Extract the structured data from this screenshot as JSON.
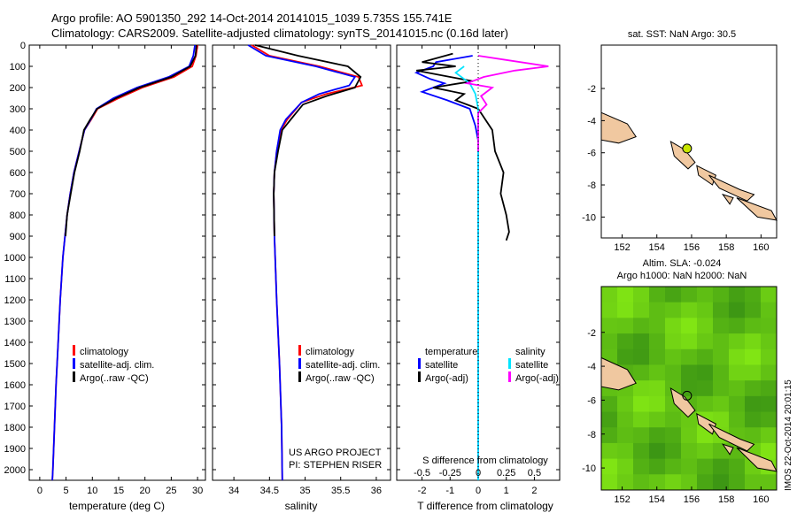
{
  "header": {
    "line1": "Argo profile: AO 5901350_292 14-Oct-2014 20141015_1039 5.735S 155.741E",
    "line2": "Climatology: CARS2009. Satellite-adjusted climatology: synTS_20141015.nc (0.16d later)"
  },
  "watermark": "IMOS 22-Oct-2014 20:01:15",
  "project": {
    "line1": "US ARGO PROJECT",
    "line2": "PI: STEPHEN RISER"
  },
  "colors": {
    "climatology": "#ff0000",
    "satellite": "#0000ff",
    "argo": "#000000",
    "sat_t": "#00e5ff",
    "argo_s": "#ff00ff",
    "land": "#f0c8a0",
    "sst_dot": "#c8e600",
    "sla_field": "#44cc22"
  },
  "depth_ticks": [
    "0",
    "100",
    "200",
    "300",
    "400",
    "500",
    "600",
    "700",
    "800",
    "900",
    "1000",
    "1100",
    "1200",
    "1300",
    "1400",
    "1500",
    "1600",
    "1700",
    "1800",
    "1900",
    "2000"
  ],
  "chart_data": [
    {
      "type": "line",
      "id": "temperature",
      "xlabel": "temperature (deg C)",
      "ylabel": "",
      "xlim": [
        -2,
        31.5
      ],
      "ylim": [
        2050,
        0
      ],
      "xticks": [
        "0",
        "5",
        "10",
        "15",
        "20",
        "25",
        "30"
      ],
      "legend": [
        "climatology",
        "satellite-adj. clim.",
        "Argo(..raw -QC)"
      ],
      "series": [
        {
          "name": "climatology",
          "points": [
            [
              30.0,
              0
            ],
            [
              29.7,
              50
            ],
            [
              29.0,
              100
            ],
            [
              25.5,
              150
            ],
            [
              19.5,
              200
            ],
            [
              15.0,
              250
            ],
            [
              11.0,
              300
            ],
            [
              9.8,
              350
            ],
            [
              8.5,
              400
            ],
            [
              7.5,
              500
            ],
            [
              6.5,
              600
            ],
            [
              5.8,
              700
            ],
            [
              5.2,
              800
            ],
            [
              4.8,
              900
            ],
            [
              4.4,
              1000
            ],
            [
              3.9,
              1200
            ],
            [
              3.5,
              1400
            ],
            [
              3.1,
              1600
            ],
            [
              2.8,
              1800
            ],
            [
              2.5,
              2000
            ],
            [
              2.4,
              2050
            ]
          ]
        },
        {
          "name": "satellite-adj. clim.",
          "points": [
            [
              29.5,
              0
            ],
            [
              29.2,
              50
            ],
            [
              28.4,
              100
            ],
            [
              24.5,
              150
            ],
            [
              18.5,
              200
            ],
            [
              14.0,
              250
            ],
            [
              10.8,
              300
            ],
            [
              9.7,
              350
            ],
            [
              8.5,
              400
            ],
            [
              7.5,
              500
            ],
            [
              6.5,
              600
            ],
            [
              5.8,
              700
            ],
            [
              5.2,
              800
            ],
            [
              4.8,
              900
            ],
            [
              4.4,
              1000
            ],
            [
              3.9,
              1200
            ],
            [
              3.5,
              1400
            ],
            [
              3.1,
              1600
            ],
            [
              2.8,
              1800
            ],
            [
              2.5,
              2000
            ],
            [
              2.4,
              2050
            ]
          ]
        },
        {
          "name": "Argo(..raw -QC)",
          "points": [
            [
              29.8,
              0
            ],
            [
              29.6,
              50
            ],
            [
              28.6,
              100
            ],
            [
              25.0,
              150
            ],
            [
              19.0,
              200
            ],
            [
              14.5,
              250
            ],
            [
              10.9,
              300
            ],
            [
              9.6,
              350
            ],
            [
              8.4,
              400
            ],
            [
              7.6,
              500
            ],
            [
              6.6,
              600
            ],
            [
              5.9,
              700
            ],
            [
              5.2,
              800
            ],
            [
              4.9,
              900
            ]
          ]
        }
      ]
    },
    {
      "type": "line",
      "id": "salinity",
      "xlabel": "salinity",
      "ylabel": "",
      "xlim": [
        33.7,
        36.2
      ],
      "ylim": [
        2050,
        0
      ],
      "xticks": [
        "34",
        "34.5",
        "35",
        "35.5",
        "36"
      ],
      "legend": [
        "climatology",
        "satellite-adj. clim.",
        "Argo(..raw -QC)"
      ],
      "series": [
        {
          "name": "climatology",
          "points": [
            [
              34.25,
              0
            ],
            [
              34.5,
              50
            ],
            [
              35.2,
              100
            ],
            [
              35.75,
              150
            ],
            [
              35.8,
              190
            ],
            [
              35.3,
              230
            ],
            [
              34.95,
              270
            ],
            [
              34.75,
              350
            ],
            [
              34.66,
              400
            ],
            [
              34.6,
              500
            ],
            [
              34.57,
              600
            ],
            [
              34.56,
              700
            ],
            [
              34.57,
              900
            ],
            [
              34.6,
              1200
            ],
            [
              34.64,
              1500
            ],
            [
              34.67,
              1800
            ],
            [
              34.68,
              2050
            ]
          ]
        },
        {
          "name": "satellite-adj. clim.",
          "points": [
            [
              34.2,
              0
            ],
            [
              34.45,
              50
            ],
            [
              35.15,
              100
            ],
            [
              35.7,
              150
            ],
            [
              35.62,
              190
            ],
            [
              35.2,
              230
            ],
            [
              34.95,
              270
            ],
            [
              34.73,
              350
            ],
            [
              34.65,
              400
            ],
            [
              34.6,
              500
            ],
            [
              34.57,
              600
            ],
            [
              34.56,
              700
            ],
            [
              34.57,
              900
            ],
            [
              34.6,
              1200
            ],
            [
              34.64,
              1500
            ],
            [
              34.67,
              1800
            ],
            [
              34.68,
              2050
            ]
          ]
        },
        {
          "name": "Argo(..raw -QC)",
          "points": [
            [
              34.3,
              0
            ],
            [
              34.9,
              50
            ],
            [
              35.6,
              100
            ],
            [
              35.78,
              150
            ],
            [
              35.7,
              200
            ],
            [
              35.3,
              240
            ],
            [
              34.97,
              280
            ],
            [
              34.8,
              350
            ],
            [
              34.68,
              400
            ],
            [
              34.62,
              500
            ],
            [
              34.57,
              600
            ],
            [
              34.56,
              700
            ],
            [
              34.57,
              900
            ]
          ]
        }
      ]
    },
    {
      "type": "line",
      "id": "difference",
      "xlabel": "T difference from climatology",
      "xlabel_top": "S difference from climatology",
      "ylabel": "",
      "xlim": [
        -2.9,
        2.9
      ],
      "ylim": [
        2050,
        0
      ],
      "xticks": [
        "-2",
        "-1",
        "0",
        "1",
        "2"
      ],
      "xticks_top": [
        "-0.5",
        "-0.25",
        "0",
        "0.25",
        "0.5"
      ],
      "legend_temperature_title": "temperature",
      "legend_salinity_title": "salinity",
      "legend": [
        "satellite",
        "Argo(-adj)",
        "satellite",
        "Argo(-adj)"
      ],
      "series": [
        {
          "name": "temperature satellite",
          "points": [
            [
              -0.2,
              50
            ],
            [
              -1.5,
              80
            ],
            [
              -1.6,
              100
            ],
            [
              -2.2,
              130
            ],
            [
              -1.7,
              160
            ],
            [
              -1.2,
              180
            ],
            [
              -2.0,
              220
            ],
            [
              -1.1,
              260
            ],
            [
              -0.3,
              300
            ],
            [
              -0.1,
              380
            ],
            [
              0,
              450
            ],
            [
              0,
              600
            ],
            [
              0,
              1000
            ],
            [
              0,
              1700
            ],
            [
              0,
              2050
            ]
          ]
        },
        {
          "name": "temperature Argo(-adj)",
          "points": [
            [
              -0.9,
              40
            ],
            [
              -2.0,
              80
            ],
            [
              -0.8,
              100
            ],
            [
              -2.2,
              120
            ],
            [
              -1.0,
              150
            ],
            [
              -0.2,
              170
            ],
            [
              -1.6,
              200
            ],
            [
              -0.5,
              230
            ],
            [
              -0.8,
              260
            ],
            [
              0,
              300
            ],
            [
              0.5,
              400
            ],
            [
              0.6,
              500
            ],
            [
              0.9,
              600
            ],
            [
              0.8,
              700
            ],
            [
              1.0,
              800
            ],
            [
              1.1,
              880
            ],
            [
              1.0,
              920
            ]
          ]
        },
        {
          "name": "salinity satellite",
          "points": [
            [
              -0.5,
              100
            ],
            [
              -0.8,
              130
            ],
            [
              -0.3,
              180
            ],
            [
              -0.1,
              230
            ],
            [
              0,
              300
            ],
            [
              0,
              400
            ],
            [
              0,
              600
            ],
            [
              0,
              1000
            ],
            [
              0,
              1500
            ],
            [
              0,
              2050
            ]
          ]
        },
        {
          "name": "salinity Argo(-adj)",
          "points": [
            [
              0,
              50
            ],
            [
              1.0,
              70
            ],
            [
              2.5,
              100
            ],
            [
              1.3,
              120
            ],
            [
              0.2,
              150
            ],
            [
              -0.4,
              180
            ],
            [
              0.5,
              200
            ],
            [
              0.1,
              240
            ],
            [
              0.3,
              280
            ],
            [
              0,
              320
            ],
            [
              0,
              400
            ],
            [
              0,
              500
            ]
          ]
        }
      ]
    },
    {
      "type": "map",
      "id": "sst-map",
      "title": "sat. SST: NaN Argo: 30.5",
      "xticks": [
        "152",
        "154",
        "156",
        "158",
        "160"
      ],
      "yticks": [
        "-2",
        "-4",
        "-6",
        "-8",
        "-10"
      ],
      "xlim": [
        150.8,
        160.9
      ],
      "ylim": [
        -11.3,
        0.7
      ],
      "marker": [
        155.741,
        -5.735
      ]
    },
    {
      "type": "heatmap",
      "id": "sla-map",
      "title_line1": "Altim. SLA: -0.024",
      "title_line2": "Argo h1000: NaN h2000: NaN",
      "xticks": [
        "152",
        "154",
        "156",
        "158",
        "160"
      ],
      "yticks": [
        "-2",
        "-4",
        "-6",
        "-8",
        "-10"
      ],
      "xlim": [
        150.8,
        160.9
      ],
      "ylim": [
        -11.3,
        0.7
      ],
      "marker": [
        155.741,
        -5.735
      ]
    }
  ]
}
